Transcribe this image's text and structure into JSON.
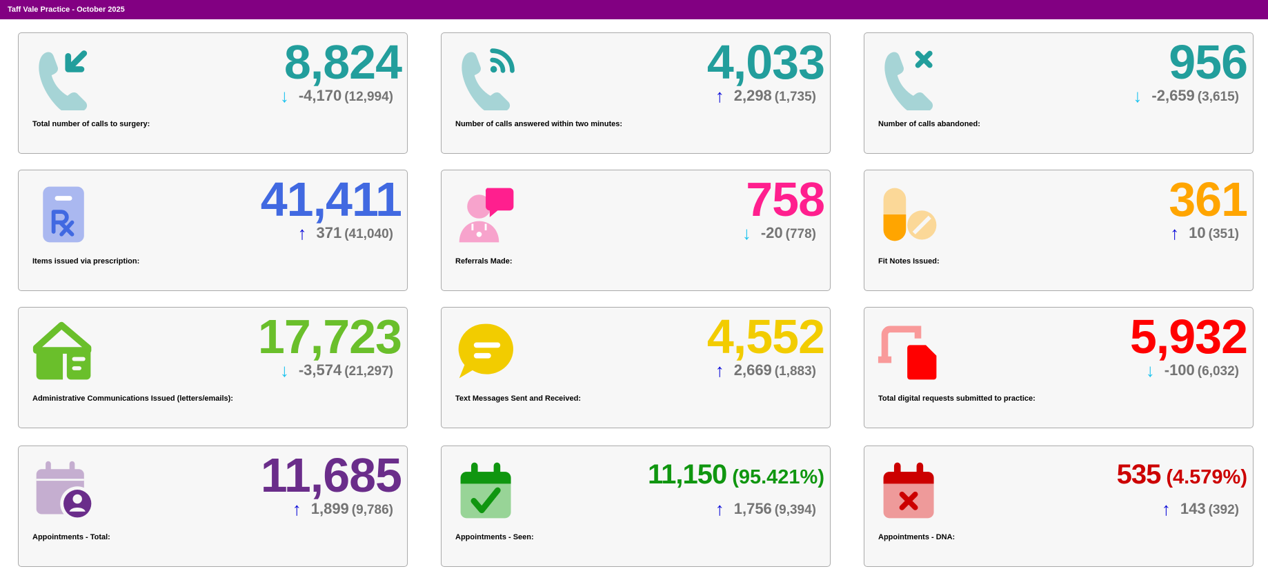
{
  "header": {
    "title": "Taff Vale Practice - October 2025"
  },
  "arrow_colors": {
    "up": "#0a0ad8",
    "down": "#1cc3ee"
  },
  "cards": [
    {
      "icon": "phone-incoming-icon",
      "value": "8,824",
      "pct": "",
      "direction": "down",
      "arrow": "↓",
      "change": "-4,170",
      "previous": "(12,994)",
      "label": "Total number of calls to surgery:",
      "color": "#229e9c",
      "light": "#a6d4d6"
    },
    {
      "icon": "phone-answered-icon",
      "value": "4,033",
      "pct": "",
      "direction": "up",
      "arrow": "↑",
      "change": "2,298",
      "previous": "(1,735)",
      "label": "Number of calls answered within two minutes:",
      "color": "#229e9c",
      "light": "#a6d4d6"
    },
    {
      "icon": "phone-missed-icon",
      "value": "956",
      "pct": "",
      "direction": "down",
      "arrow": "↓",
      "change": "-2,659",
      "previous": "(3,615)",
      "label": "Number of calls abandoned:",
      "color": "#229e9c",
      "light": "#a6d4d6"
    },
    {
      "icon": "prescription-icon",
      "value": "41,411",
      "pct": "",
      "direction": "up",
      "arrow": "↑",
      "change": "371",
      "previous": "(41,040)",
      "label": "Items issued via prescription:",
      "color": "#4169e1",
      "light": "#aab8f0"
    },
    {
      "icon": "doctor-referral-icon",
      "value": "758",
      "pct": "",
      "direction": "down",
      "arrow": "↓",
      "change": "-20",
      "previous": "(778)",
      "label": "Referrals Made:",
      "color": "#ff1f8e",
      "light": "#f7a3cc"
    },
    {
      "icon": "pills-icon",
      "value": "361",
      "pct": "",
      "direction": "up",
      "arrow": "↑",
      "change": "10",
      "previous": "(351)",
      "label": "Fit Notes Issued:",
      "color": "#ffa500",
      "light": "#fbd898"
    },
    {
      "icon": "mail-house-icon",
      "value": "17,723",
      "pct": "",
      "direction": "down",
      "arrow": "↓",
      "change": "-3,574",
      "previous": "(21,297)",
      "label": "Administrative Communications Issued (letters/emails):",
      "color": "#6abf2b",
      "light": "#6abf2b"
    },
    {
      "icon": "message-bubble-icon",
      "value": "4,552",
      "pct": "",
      "direction": "up",
      "arrow": "↑",
      "change": "2,669",
      "previous": "(1,883)",
      "label": "Text Messages Sent and Received:",
      "color": "#f2cc00",
      "light": "#f2cc00"
    },
    {
      "icon": "digital-request-icon",
      "value": "5,932",
      "pct": "",
      "direction": "down",
      "arrow": "↓",
      "change": "-100",
      "previous": "(6,032)",
      "label": "Total digital requests submitted to practice:",
      "color": "#ff0000",
      "light": "#f99a9a"
    },
    {
      "icon": "calendar-user-icon",
      "value": "11,685",
      "pct": "",
      "direction": "up",
      "arrow": "↑",
      "change": "1,899",
      "previous": "(9,786)",
      "label": "Appointments - Total:",
      "color": "#6a2d8a",
      "light": "#c5aed0"
    },
    {
      "icon": "calendar-check-icon",
      "value": "11,150",
      "pct": "(95.421%)",
      "direction": "up",
      "arrow": "↑",
      "change": "1,756",
      "previous": "(9,394)",
      "label": "Appointments - Seen:",
      "color": "#109610",
      "light": "#98d497"
    },
    {
      "icon": "calendar-cross-icon",
      "value": "535",
      "pct": "(4.579%)",
      "direction": "up",
      "arrow": "↑",
      "change": "143",
      "previous": "(392)",
      "label": "Appointments - DNA:",
      "color": "#cc0000",
      "light": "#ee9a9a"
    }
  ]
}
